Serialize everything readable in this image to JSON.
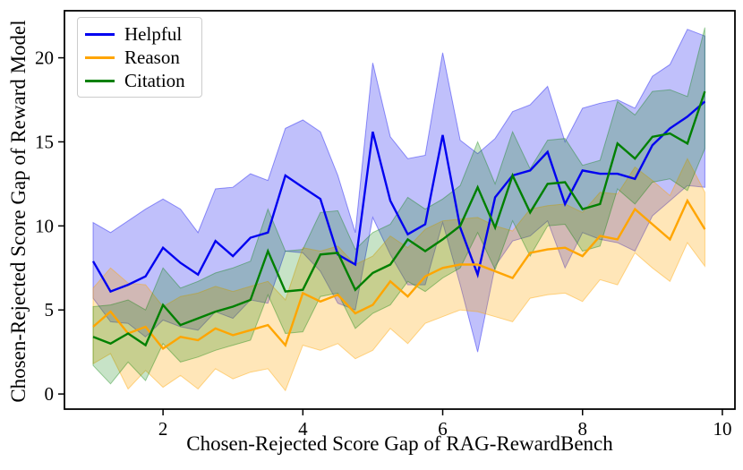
{
  "chart_data": {
    "type": "line",
    "title": "",
    "xlabel": "Chosen-Rejected Score Gap of RAG-RewardBench",
    "ylabel": "Chosen-Rejected Score Gap of Reward Model",
    "xlim": [
      0.59,
      10.18
    ],
    "ylim": [
      -0.9,
      22.8
    ],
    "xticks": [
      2,
      4,
      6,
      8,
      10
    ],
    "yticks": [
      0,
      5,
      10,
      15,
      20
    ],
    "grid": false,
    "legend_position": "upper-left",
    "x": [
      1.0,
      1.25,
      1.5,
      1.75,
      2.0,
      2.25,
      2.5,
      2.75,
      3.0,
      3.25,
      3.5,
      3.75,
      4.0,
      4.25,
      4.5,
      4.75,
      5.0,
      5.25,
      5.5,
      5.75,
      6.0,
      6.25,
      6.5,
      6.75,
      7.0,
      7.25,
      7.5,
      7.75,
      8.0,
      8.25,
      8.5,
      8.75,
      9.0,
      9.25,
      9.5,
      9.75
    ],
    "series": [
      {
        "name": "Helpful",
        "color": "#0202f0",
        "band_alpha": 0.25,
        "values": [
          7.9,
          6.1,
          6.5,
          7.0,
          8.7,
          7.8,
          7.1,
          9.1,
          8.2,
          9.3,
          9.6,
          13.0,
          12.3,
          11.6,
          8.3,
          7.7,
          15.6,
          11.5,
          9.5,
          10.1,
          15.4,
          9.9,
          7.1,
          11.7,
          13.0,
          13.3,
          14.4,
          11.3,
          13.3,
          13.1,
          13.1,
          12.8,
          14.8,
          15.8,
          16.5,
          17.4
        ],
        "lower": [
          5.7,
          4.3,
          4.2,
          3.4,
          4.4,
          4.0,
          3.8,
          4.9,
          4.5,
          5.6,
          5.4,
          8.5,
          8.4,
          7.3,
          5.4,
          5.0,
          10.5,
          8.3,
          6.5,
          6.5,
          10.2,
          6.5,
          2.5,
          7.6,
          9.1,
          9.4,
          10.3,
          7.5,
          9.6,
          9.2,
          9.0,
          8.5,
          10.6,
          11.5,
          12.4,
          12.3
        ],
        "upper": [
          10.2,
          9.6,
          10.3,
          11.0,
          11.6,
          11.0,
          9.6,
          12.2,
          12.3,
          13.1,
          12.7,
          15.8,
          16.3,
          15.6,
          13.0,
          9.6,
          19.7,
          15.3,
          14.0,
          14.2,
          20.3,
          15.1,
          14.3,
          15.2,
          16.8,
          17.2,
          18.3,
          15.0,
          17.0,
          17.3,
          17.5,
          17.0,
          18.9,
          19.6,
          21.7,
          21.3
        ]
      },
      {
        "name": "Reason",
        "color": "#ffa500",
        "band_alpha": 0.28,
        "values": [
          4.0,
          4.9,
          3.6,
          4.0,
          2.7,
          3.4,
          3.2,
          3.9,
          3.5,
          3.8,
          4.1,
          2.9,
          6.0,
          5.5,
          5.9,
          4.8,
          5.3,
          6.7,
          5.8,
          7.0,
          7.5,
          7.7,
          7.7,
          7.3,
          6.9,
          8.4,
          8.6,
          8.7,
          8.2,
          9.4,
          9.2,
          11.0,
          10.1,
          9.2,
          11.5,
          9.8
        ],
        "lower": [
          1.8,
          2.4,
          0.3,
          1.4,
          0.4,
          1.1,
          0.3,
          1.5,
          0.9,
          1.3,
          1.5,
          0.2,
          2.9,
          2.6,
          3.0,
          2.1,
          2.6,
          3.9,
          3.0,
          4.2,
          4.6,
          5.0,
          4.9,
          4.6,
          4.3,
          5.7,
          5.9,
          6.0,
          5.5,
          6.8,
          6.5,
          8.4,
          7.5,
          6.7,
          9.0,
          7.6
        ],
        "upper": [
          6.3,
          7.5,
          6.6,
          6.5,
          5.2,
          5.8,
          6.0,
          6.4,
          6.1,
          6.4,
          6.7,
          5.6,
          8.7,
          8.5,
          8.8,
          7.7,
          8.2,
          9.4,
          8.7,
          9.8,
          10.3,
          10.4,
          10.5,
          10.0,
          9.7,
          11.0,
          11.2,
          11.3,
          10.8,
          12.0,
          11.9,
          13.5,
          12.7,
          11.8,
          14.0,
          12.0
        ]
      },
      {
        "name": "Citation",
        "color": "#008000",
        "band_alpha": 0.22,
        "values": [
          3.4,
          3.0,
          3.6,
          2.9,
          5.3,
          4.1,
          4.5,
          4.9,
          5.2,
          5.6,
          8.5,
          6.1,
          6.2,
          8.3,
          8.4,
          6.2,
          7.2,
          7.7,
          9.2,
          8.5,
          9.2,
          10.0,
          12.3,
          9.9,
          13.0,
          10.8,
          12.5,
          12.6,
          11.0,
          11.3,
          14.9,
          14.0,
          15.3,
          15.5,
          14.9,
          18.0
        ],
        "lower": [
          1.7,
          0.6,
          1.9,
          0.8,
          3.0,
          1.9,
          2.2,
          2.6,
          2.9,
          3.2,
          5.9,
          3.6,
          3.7,
          5.8,
          6.0,
          3.9,
          4.8,
          5.3,
          6.7,
          6.1,
          6.9,
          7.5,
          9.6,
          7.4,
          10.3,
          8.2,
          10.0,
          10.1,
          8.5,
          8.8,
          12.2,
          11.3,
          12.6,
          12.8,
          12.1,
          14.6
        ],
        "upper": [
          5.2,
          5.3,
          5.6,
          5.0,
          7.5,
          6.3,
          6.7,
          7.2,
          7.5,
          7.9,
          11.0,
          8.5,
          8.6,
          10.8,
          10.9,
          8.6,
          9.6,
          10.1,
          11.7,
          11.0,
          11.6,
          12.4,
          15.0,
          12.5,
          15.6,
          13.4,
          15.1,
          15.2,
          13.6,
          13.9,
          17.4,
          16.6,
          18.0,
          18.1,
          17.7,
          21.8
        ]
      }
    ]
  },
  "styles": {
    "spine_color": "#000000",
    "tick_color": "#000000",
    "line_width": 2.4,
    "tick_font_size": 21,
    "legend_border_color": "#cccccc"
  }
}
